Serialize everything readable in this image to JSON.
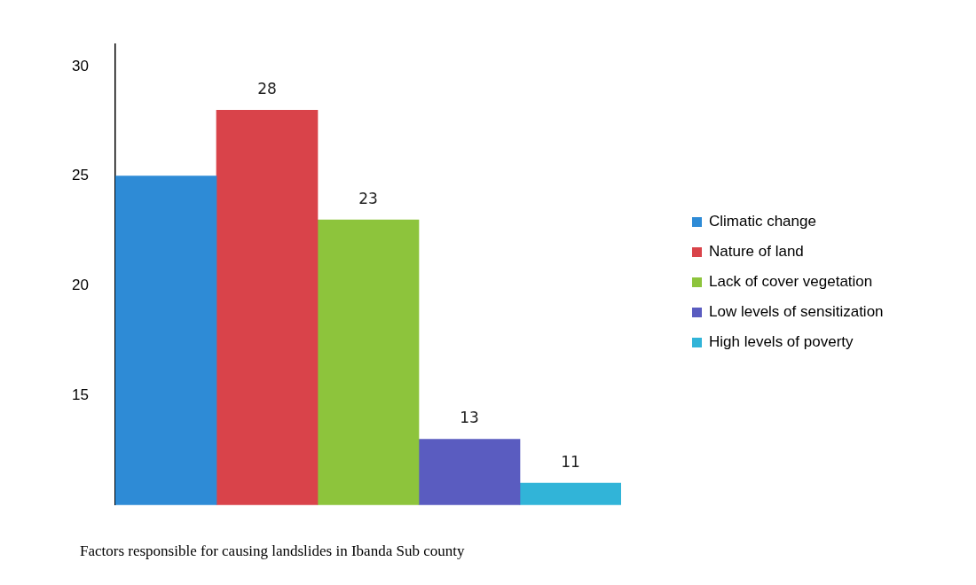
{
  "chart_data": {
    "type": "bar",
    "title": "Factors responsible for causing landslides in Ibanda Sub county",
    "categories": [
      null,
      null,
      null,
      null,
      null
    ],
    "series": [
      {
        "name": "Climatic change",
        "color": "#2e8bd6",
        "values": [
          25,
          null,
          null,
          null,
          null
        ],
        "value_labels": [
          null,
          null,
          null,
          null,
          null
        ]
      },
      {
        "name": "Nature of land",
        "color": "#d9434a",
        "values": [
          null,
          28,
          null,
          null,
          null
        ],
        "value_labels": [
          null,
          "28",
          null,
          null,
          null
        ]
      },
      {
        "name": "Lack of cover vegetation",
        "color": "#8dc43c",
        "values": [
          null,
          null,
          23,
          null,
          null
        ],
        "value_labels": [
          null,
          null,
          "23",
          null,
          null
        ]
      },
      {
        "name": "Low levels of sensitization",
        "color": "#5a5cc0",
        "values": [
          null,
          null,
          null,
          13,
          null
        ],
        "value_labels": [
          null,
          null,
          null,
          "13",
          null
        ]
      },
      {
        "name": "High levels of poverty",
        "color": "#31b4d8",
        "values": [
          null,
          null,
          null,
          null,
          11
        ],
        "value_labels": [
          null,
          null,
          null,
          null,
          "11"
        ]
      }
    ],
    "stacked": true,
    "ylim": [
      10,
      31
    ],
    "yticks": [
      15,
      20,
      25,
      30
    ],
    "grid": false,
    "legend": "right"
  }
}
